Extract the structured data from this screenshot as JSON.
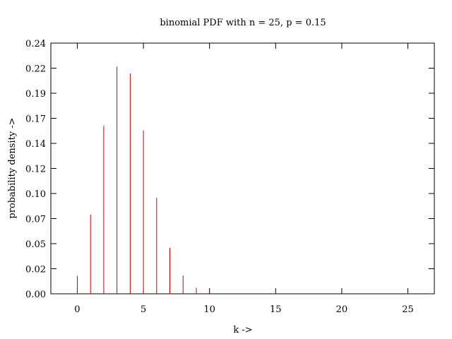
{
  "chart_data": {
    "type": "bar",
    "title": "binomial PDF with n = 25, p = 0.15",
    "xlabel": "k ->",
    "ylabel": "probability density ->",
    "xlim": [
      -2,
      27
    ],
    "ylim": [
      0,
      0.24
    ],
    "x_ticks": [
      0,
      5,
      10,
      15,
      20,
      25
    ],
    "x_tick_labels": [
      "0",
      "5",
      "10",
      "15",
      "20",
      "25"
    ],
    "y_ticks": [
      0,
      0.024,
      0.048,
      0.072,
      0.096,
      0.12,
      0.144,
      0.168,
      0.192,
      0.216,
      0.24
    ],
    "y_tick_labels": [
      "0.00",
      "0.02",
      "0.05",
      "0.07",
      "0.10",
      "0.12",
      "0.14",
      "0.17",
      "0.19",
      "0.22",
      "0.24"
    ],
    "grid": false,
    "color": "#cc0000",
    "x": [
      0,
      1,
      2,
      3,
      4,
      5,
      6,
      7,
      8,
      9,
      10,
      11,
      12,
      13,
      14,
      15,
      16,
      17,
      18,
      19,
      20,
      21,
      22,
      23,
      24,
      25
    ],
    "values": [
      0.0172,
      0.0759,
      0.1607,
      0.2174,
      0.211,
      0.1564,
      0.092,
      0.0441,
      0.0175,
      0.0058,
      0.0016,
      0.0004,
      0.0001,
      0,
      0,
      0,
      0,
      0,
      0,
      0,
      0,
      0,
      0,
      0,
      0,
      0
    ]
  }
}
